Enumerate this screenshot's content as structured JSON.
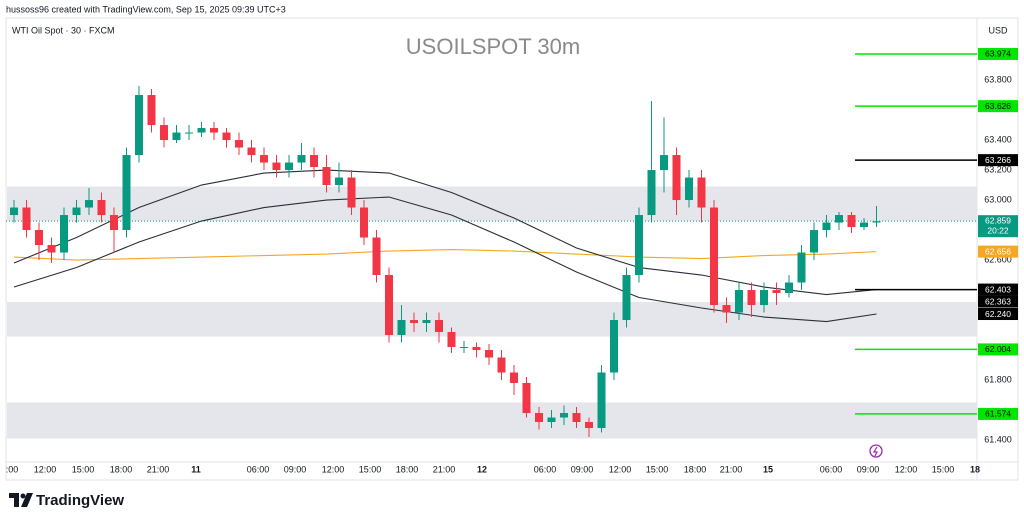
{
  "header": {
    "attribution": "hussoss96 created with TradingView.com, Sep 15, 2025 09:39 UTC+3"
  },
  "footer": {
    "brand": "TradingView"
  },
  "chart_data": {
    "type": "candlestick",
    "title": "USOILSPOT 30m",
    "symbol_label": "WTI Oil Spot · 30 · FXCM",
    "y_axis_unit": "USD",
    "x_axis_labels": [
      ":00",
      "12:00",
      "15:00",
      "18:00",
      "21:00",
      "11",
      "06:00",
      "09:00",
      "12:00",
      "15:00",
      "18:00",
      "21:00",
      "12",
      "06:00",
      "09:00",
      "12:00",
      "15:00",
      "18:00",
      "21:00",
      "15",
      "06:00",
      "09:00",
      "12:00",
      "15:00",
      "18"
    ],
    "ylim": [
      61.26,
      64.067
    ],
    "yticks": [
      {
        "value": 61.4,
        "label": "61.400"
      },
      {
        "value": 61.8,
        "label": "61.800"
      },
      {
        "value": 62.6,
        "label": "62.600"
      },
      {
        "value": 63,
        "label": "63.000"
      },
      {
        "value": 63.2,
        "label": "63.200"
      },
      {
        "value": 63.4,
        "label": "63.400"
      },
      {
        "value": 63.8,
        "label": "63.800"
      }
    ],
    "grid": false,
    "up_color": "#089981",
    "down_color": "#f23645",
    "candles": {
      "open": [
        62.9,
        62.95,
        62.8,
        62.7,
        62.65,
        62.9,
        62.95,
        63,
        62.9,
        62.8,
        63.3,
        63.7,
        63.5,
        63.4,
        63.45,
        63.45,
        63.48,
        63.45,
        63.4,
        63.35,
        63.3,
        63.25,
        63.2,
        63.25,
        63.3,
        63.22,
        63.1,
        63.15,
        62.95,
        62.75,
        62.5,
        62.1,
        62.2,
        62.18,
        62.2,
        62.12,
        62.02,
        62.02,
        62,
        61.95,
        61.85,
        61.78,
        61.58,
        61.52,
        61.55,
        61.58,
        61.52,
        61.48,
        61.85,
        62.2,
        62.5,
        62.9,
        63.2,
        63.3,
        63,
        63.15,
        62.95,
        62.3,
        62.25,
        62.4,
        62.3,
        62.4,
        62.38,
        62.45,
        62.65,
        62.8,
        62.85,
        62.9,
        62.82,
        62.85
      ],
      "high": [
        63,
        63,
        62.85,
        62.75,
        62.95,
        63,
        63.08,
        63.05,
        62.95,
        63.35,
        63.76,
        63.74,
        63.55,
        63.5,
        63.5,
        63.52,
        63.52,
        63.48,
        63.45,
        63.4,
        63.35,
        63.3,
        63.3,
        63.38,
        63.35,
        63.3,
        63.25,
        63.2,
        63,
        62.8,
        62.55,
        62.3,
        62.25,
        62.25,
        62.25,
        62.15,
        62.06,
        62.05,
        62.04,
        62,
        61.9,
        61.82,
        61.62,
        61.6,
        61.63,
        61.62,
        61.55,
        61.9,
        62.25,
        62.55,
        62.95,
        63.66,
        63.55,
        63.35,
        63.2,
        63.2,
        63,
        62.35,
        62.45,
        62.45,
        62.45,
        62.45,
        62.5,
        62.7,
        62.85,
        62.9,
        62.92,
        62.92,
        62.88,
        62.96
      ],
      "low": [
        62.85,
        62.75,
        62.6,
        62.58,
        62.6,
        62.85,
        62.9,
        62.85,
        62.65,
        62.75,
        63.25,
        63.45,
        63.35,
        63.38,
        63.4,
        63.42,
        63.4,
        63.35,
        63.3,
        63.25,
        63.2,
        63.15,
        63.15,
        63.2,
        63.15,
        63.05,
        63.05,
        62.9,
        62.7,
        62.45,
        62.05,
        62.05,
        62.12,
        62.12,
        62.05,
        61.98,
        61.98,
        61.95,
        61.9,
        61.8,
        61.7,
        61.55,
        61.47,
        61.48,
        61.5,
        61.48,
        61.42,
        61.45,
        61.8,
        62.15,
        62.45,
        62.85,
        63.05,
        62.9,
        62.95,
        62.85,
        62.25,
        62.18,
        62.2,
        62.22,
        62.25,
        62.3,
        62.35,
        62.4,
        62.6,
        62.75,
        62.8,
        62.78,
        62.8,
        62.82
      ],
      "close": [
        62.95,
        62.8,
        62.7,
        62.65,
        62.9,
        62.95,
        63,
        62.9,
        62.8,
        63.3,
        63.7,
        63.5,
        63.4,
        63.45,
        63.45,
        63.48,
        63.45,
        63.4,
        63.35,
        63.3,
        63.25,
        63.2,
        63.25,
        63.3,
        63.22,
        63.1,
        63.15,
        62.95,
        62.75,
        62.5,
        62.1,
        62.2,
        62.18,
        62.2,
        62.12,
        62.02,
        62.02,
        62,
        61.95,
        61.85,
        61.78,
        61.58,
        61.52,
        61.55,
        61.58,
        61.52,
        61.48,
        61.85,
        62.2,
        62.5,
        62.9,
        63.2,
        63.3,
        63,
        63.15,
        62.95,
        62.3,
        62.25,
        62.4,
        62.3,
        62.4,
        62.38,
        62.45,
        62.65,
        62.8,
        62.85,
        62.9,
        62.82,
        62.85,
        62.859
      ]
    },
    "lines": [
      {
        "color": "#f5a623",
        "x": [
          0,
          5,
          10,
          15,
          20,
          25,
          30,
          35,
          40,
          45,
          50,
          55,
          60,
          65,
          69
        ],
        "values": [
          62.62,
          62.6,
          62.61,
          62.62,
          62.63,
          62.64,
          62.66,
          62.67,
          62.66,
          62.64,
          62.62,
          62.61,
          62.63,
          62.64,
          62.656
        ]
      },
      {
        "color": "#2a2e39",
        "x": [
          0,
          5,
          10,
          15,
          20,
          25,
          30,
          35,
          40,
          45,
          50,
          55,
          60,
          65,
          69
        ],
        "values": [
          62.58,
          62.75,
          62.95,
          63.1,
          63.18,
          63.2,
          63.18,
          63.05,
          62.88,
          62.68,
          62.55,
          62.5,
          62.42,
          62.37,
          62.403
        ]
      },
      {
        "color": "#2a2e39",
        "x": [
          0,
          5,
          10,
          15,
          20,
          25,
          30,
          35,
          40,
          45,
          50,
          55,
          60,
          65,
          69
        ],
        "values": [
          62.42,
          62.55,
          62.72,
          62.86,
          62.95,
          63,
          63.02,
          62.9,
          62.72,
          62.52,
          62.35,
          62.28,
          62.22,
          62.19,
          62.24
        ]
      }
    ],
    "zones": [
      [
        63.09,
        62.86
      ],
      [
        62.32,
        62.09
      ],
      [
        61.65,
        61.41
      ]
    ],
    "zone_color": "#e4e6eb",
    "last_price": 62.859,
    "last_price_color": "#089981",
    "countdown": "20:22",
    "levels": [
      {
        "value": 63.974,
        "color": "#00e600",
        "line": true
      },
      {
        "value": 63.626,
        "color": "#00e600",
        "line": true
      },
      {
        "value": 63.266,
        "color": "#000000",
        "line": true
      },
      {
        "value": 62.656,
        "color": "#f5a623",
        "line": false
      },
      {
        "value": 62.403,
        "color": "#000000",
        "line": true
      },
      {
        "value": 62.363,
        "color": "#000000",
        "line": false
      },
      {
        "value": 62.24,
        "label": "62.240",
        "color": "#000000",
        "line": false
      },
      {
        "value": 62.004,
        "color": "#00e600",
        "line": true
      },
      {
        "value": 61.574,
        "color": "#00e600",
        "line": true
      }
    ]
  }
}
